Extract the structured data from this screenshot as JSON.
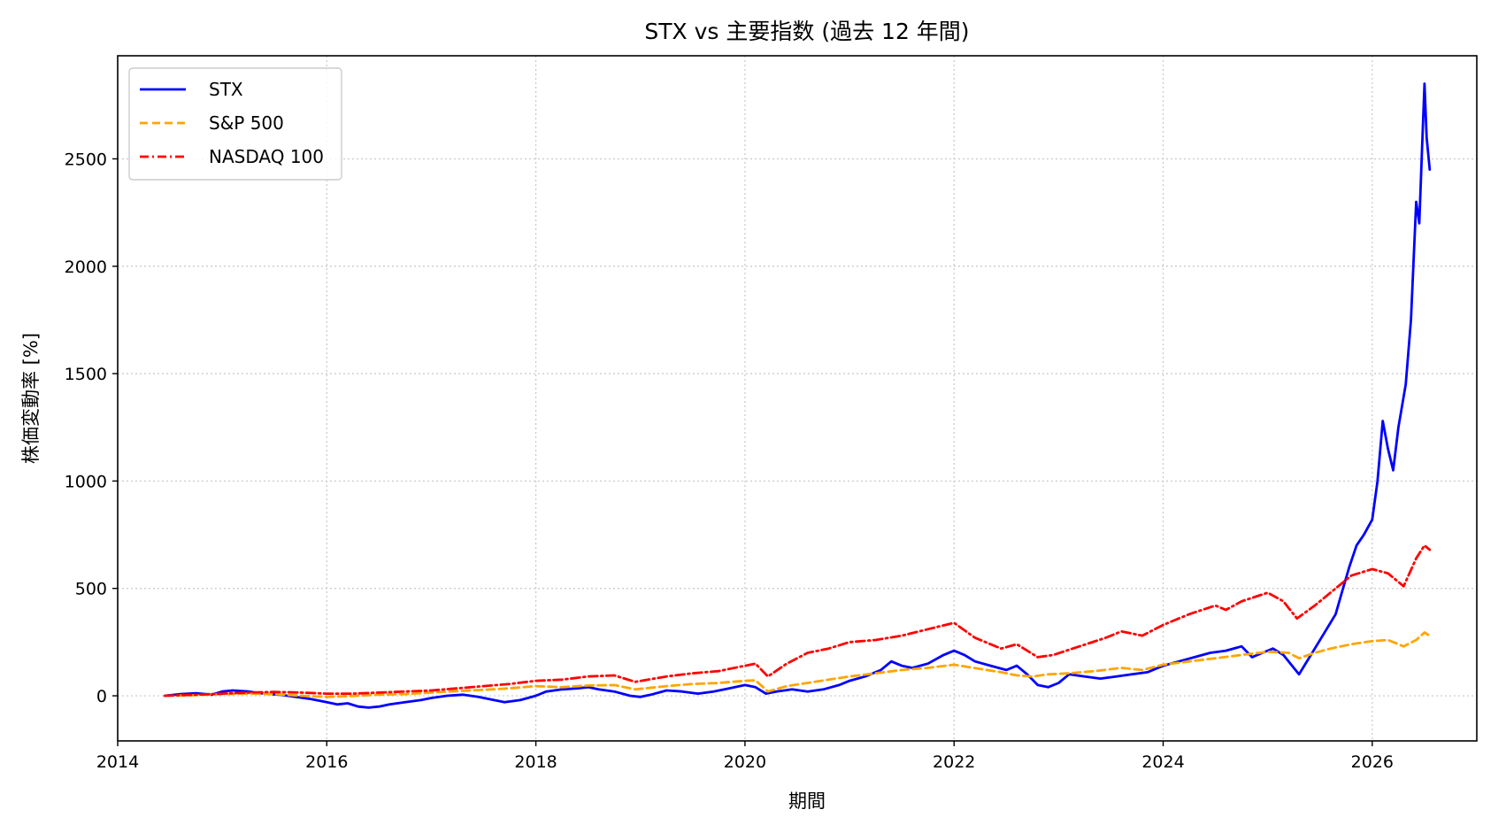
{
  "chart_data": {
    "type": "line",
    "title": "STX vs 主要指数 (過去 12 年間)",
    "xlabel": "期間",
    "ylabel": "株価変動率 [%]",
    "xlim": [
      2014.0,
      2027.0
    ],
    "ylim": [
      -210,
      2980
    ],
    "x_ticks": [
      2014,
      2016,
      2018,
      2020,
      2022,
      2024,
      2026
    ],
    "y_ticks": [
      0,
      500,
      1000,
      1500,
      2000,
      2500
    ],
    "grid": true,
    "legend_position": "top-left",
    "series": [
      {
        "name": "STX",
        "color": "#0000ff",
        "style": "solid",
        "points": [
          [
            2014.45,
            0
          ],
          [
            2014.6,
            8
          ],
          [
            2014.75,
            12
          ],
          [
            2014.9,
            5
          ],
          [
            2015.0,
            20
          ],
          [
            2015.1,
            25
          ],
          [
            2015.25,
            20
          ],
          [
            2015.4,
            10
          ],
          [
            2015.55,
            5
          ],
          [
            2015.7,
            -5
          ],
          [
            2015.85,
            -15
          ],
          [
            2016.0,
            -30
          ],
          [
            2016.1,
            -40
          ],
          [
            2016.2,
            -35
          ],
          [
            2016.3,
            -50
          ],
          [
            2016.4,
            -55
          ],
          [
            2016.5,
            -50
          ],
          [
            2016.6,
            -40
          ],
          [
            2016.75,
            -30
          ],
          [
            2016.9,
            -20
          ],
          [
            2017.0,
            -10
          ],
          [
            2017.15,
            0
          ],
          [
            2017.3,
            5
          ],
          [
            2017.45,
            -5
          ],
          [
            2017.6,
            -20
          ],
          [
            2017.7,
            -30
          ],
          [
            2017.85,
            -20
          ],
          [
            2018.0,
            0
          ],
          [
            2018.1,
            20
          ],
          [
            2018.25,
            30
          ],
          [
            2018.4,
            35
          ],
          [
            2018.5,
            40
          ],
          [
            2018.6,
            30
          ],
          [
            2018.75,
            20
          ],
          [
            2018.9,
            0
          ],
          [
            2019.0,
            -5
          ],
          [
            2019.1,
            5
          ],
          [
            2019.25,
            25
          ],
          [
            2019.4,
            20
          ],
          [
            2019.55,
            10
          ],
          [
            2019.7,
            20
          ],
          [
            2019.85,
            35
          ],
          [
            2020.0,
            50
          ],
          [
            2020.1,
            40
          ],
          [
            2020.2,
            10
          ],
          [
            2020.3,
            20
          ],
          [
            2020.45,
            30
          ],
          [
            2020.6,
            20
          ],
          [
            2020.75,
            30
          ],
          [
            2020.9,
            50
          ],
          [
            2021.0,
            70
          ],
          [
            2021.15,
            90
          ],
          [
            2021.3,
            120
          ],
          [
            2021.4,
            160
          ],
          [
            2021.5,
            140
          ],
          [
            2021.6,
            130
          ],
          [
            2021.75,
            150
          ],
          [
            2021.9,
            190
          ],
          [
            2022.0,
            210
          ],
          [
            2022.1,
            190
          ],
          [
            2022.2,
            160
          ],
          [
            2022.35,
            140
          ],
          [
            2022.5,
            120
          ],
          [
            2022.6,
            140
          ],
          [
            2022.7,
            100
          ],
          [
            2022.8,
            50
          ],
          [
            2022.9,
            40
          ],
          [
            2023.0,
            60
          ],
          [
            2023.1,
            100
          ],
          [
            2023.25,
            90
          ],
          [
            2023.4,
            80
          ],
          [
            2023.55,
            90
          ],
          [
            2023.7,
            100
          ],
          [
            2023.85,
            110
          ],
          [
            2024.0,
            140
          ],
          [
            2024.15,
            160
          ],
          [
            2024.3,
            180
          ],
          [
            2024.45,
            200
          ],
          [
            2024.6,
            210
          ],
          [
            2024.75,
            230
          ],
          [
            2024.85,
            180
          ],
          [
            2024.95,
            200
          ],
          [
            2025.05,
            220
          ],
          [
            2025.15,
            190
          ],
          [
            2025.25,
            130
          ],
          [
            2025.3,
            100
          ],
          [
            2025.35,
            140
          ],
          [
            2025.45,
            220
          ],
          [
            2025.55,
            300
          ],
          [
            2025.65,
            380
          ],
          [
            2025.72,
            500
          ],
          [
            2025.78,
            600
          ],
          [
            2025.85,
            700
          ],
          [
            2025.92,
            750
          ],
          [
            2026.0,
            820
          ],
          [
            2026.05,
            1000
          ],
          [
            2026.1,
            1280
          ],
          [
            2026.15,
            1150
          ],
          [
            2026.2,
            1050
          ],
          [
            2026.25,
            1250
          ],
          [
            2026.32,
            1450
          ],
          [
            2026.37,
            1750
          ],
          [
            2026.42,
            2300
          ],
          [
            2026.45,
            2200
          ],
          [
            2026.48,
            2600
          ],
          [
            2026.5,
            2850
          ],
          [
            2026.52,
            2600
          ],
          [
            2026.55,
            2450
          ]
        ]
      },
      {
        "name": "S&P 500",
        "color": "#ffa500",
        "style": "dashed",
        "points": [
          [
            2014.45,
            0
          ],
          [
            2014.75,
            3
          ],
          [
            2015.0,
            8
          ],
          [
            2015.25,
            10
          ],
          [
            2015.5,
            8
          ],
          [
            2015.75,
            0
          ],
          [
            2016.0,
            -5
          ],
          [
            2016.3,
            0
          ],
          [
            2016.5,
            5
          ],
          [
            2016.75,
            8
          ],
          [
            2017.0,
            15
          ],
          [
            2017.25,
            22
          ],
          [
            2017.5,
            28
          ],
          [
            2017.75,
            35
          ],
          [
            2018.0,
            45
          ],
          [
            2018.25,
            40
          ],
          [
            2018.5,
            48
          ],
          [
            2018.75,
            50
          ],
          [
            2018.95,
            30
          ],
          [
            2019.25,
            45
          ],
          [
            2019.5,
            55
          ],
          [
            2019.75,
            60
          ],
          [
            2020.0,
            70
          ],
          [
            2020.1,
            72
          ],
          [
            2020.22,
            20
          ],
          [
            2020.4,
            45
          ],
          [
            2020.6,
            60
          ],
          [
            2020.8,
            75
          ],
          [
            2021.0,
            90
          ],
          [
            2021.25,
            105
          ],
          [
            2021.5,
            120
          ],
          [
            2021.75,
            130
          ],
          [
            2022.0,
            145
          ],
          [
            2022.25,
            125
          ],
          [
            2022.45,
            110
          ],
          [
            2022.6,
            95
          ],
          [
            2022.75,
            90
          ],
          [
            2022.9,
            100
          ],
          [
            2023.1,
            105
          ],
          [
            2023.35,
            115
          ],
          [
            2023.6,
            130
          ],
          [
            2023.8,
            120
          ],
          [
            2024.0,
            145
          ],
          [
            2024.25,
            160
          ],
          [
            2024.5,
            175
          ],
          [
            2024.75,
            190
          ],
          [
            2025.0,
            205
          ],
          [
            2025.2,
            200
          ],
          [
            2025.3,
            175
          ],
          [
            2025.45,
            200
          ],
          [
            2025.6,
            220
          ],
          [
            2025.8,
            240
          ],
          [
            2026.0,
            255
          ],
          [
            2026.15,
            260
          ],
          [
            2026.3,
            230
          ],
          [
            2026.42,
            260
          ],
          [
            2026.5,
            295
          ],
          [
            2026.55,
            280
          ]
        ]
      },
      {
        "name": "NASDAQ 100",
        "color": "#ff0000",
        "style": "dashdot",
        "points": [
          [
            2014.45,
            0
          ],
          [
            2014.75,
            5
          ],
          [
            2015.0,
            10
          ],
          [
            2015.25,
            15
          ],
          [
            2015.5,
            18
          ],
          [
            2015.75,
            15
          ],
          [
            2016.0,
            10
          ],
          [
            2016.25,
            10
          ],
          [
            2016.5,
            15
          ],
          [
            2016.75,
            20
          ],
          [
            2017.0,
            25
          ],
          [
            2017.25,
            35
          ],
          [
            2017.5,
            45
          ],
          [
            2017.75,
            55
          ],
          [
            2018.0,
            70
          ],
          [
            2018.25,
            75
          ],
          [
            2018.5,
            90
          ],
          [
            2018.75,
            95
          ],
          [
            2018.95,
            65
          ],
          [
            2019.25,
            90
          ],
          [
            2019.5,
            105
          ],
          [
            2019.75,
            115
          ],
          [
            2020.0,
            140
          ],
          [
            2020.1,
            150
          ],
          [
            2020.22,
            90
          ],
          [
            2020.4,
            150
          ],
          [
            2020.6,
            200
          ],
          [
            2020.8,
            220
          ],
          [
            2021.0,
            250
          ],
          [
            2021.25,
            260
          ],
          [
            2021.5,
            280
          ],
          [
            2021.75,
            310
          ],
          [
            2022.0,
            340
          ],
          [
            2022.2,
            270
          ],
          [
            2022.45,
            220
          ],
          [
            2022.6,
            240
          ],
          [
            2022.8,
            180
          ],
          [
            2022.95,
            190
          ],
          [
            2023.2,
            230
          ],
          [
            2023.45,
            270
          ],
          [
            2023.6,
            300
          ],
          [
            2023.8,
            280
          ],
          [
            2024.0,
            330
          ],
          [
            2024.25,
            380
          ],
          [
            2024.5,
            420
          ],
          [
            2024.6,
            400
          ],
          [
            2024.75,
            440
          ],
          [
            2025.0,
            480
          ],
          [
            2025.15,
            440
          ],
          [
            2025.28,
            360
          ],
          [
            2025.45,
            420
          ],
          [
            2025.6,
            480
          ],
          [
            2025.8,
            560
          ],
          [
            2026.0,
            590
          ],
          [
            2026.15,
            570
          ],
          [
            2026.3,
            510
          ],
          [
            2026.42,
            640
          ],
          [
            2026.5,
            700
          ],
          [
            2026.55,
            680
          ]
        ]
      }
    ]
  }
}
